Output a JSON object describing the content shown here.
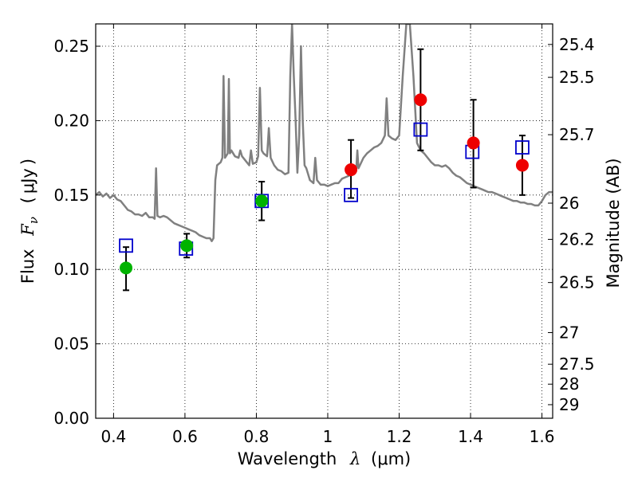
{
  "chart_data": {
    "type": "scatter",
    "title": "",
    "xlabel": {
      "prefix": "Wavelength",
      "symbol": "λ",
      "unit_open": "(",
      "unit": "μm",
      "unit_close": ")"
    },
    "ylabel": {
      "prefix": "Flux",
      "symbol": "F",
      "subscript": "ν",
      "unit_open": "(",
      "unit": "μJy",
      "unit_close": ")"
    },
    "y2label": "Magnitude (AB)",
    "xlim": [
      0.35,
      1.63
    ],
    "ylim": [
      0.0,
      0.265
    ],
    "grid": true,
    "x_ticks": [
      {
        "value": 0.4,
        "label": "0.4"
      },
      {
        "value": 0.6,
        "label": "0.6"
      },
      {
        "value": 0.8,
        "label": "0.8"
      },
      {
        "value": 1.0,
        "label": "1"
      },
      {
        "value": 1.2,
        "label": "1.2"
      },
      {
        "value": 1.4,
        "label": "1.4"
      },
      {
        "value": 1.6,
        "label": "1.6"
      }
    ],
    "y_ticks": [
      {
        "value": 0.0,
        "label": "0.00"
      },
      {
        "value": 0.05,
        "label": "0.05"
      },
      {
        "value": 0.1,
        "label": "0.10"
      },
      {
        "value": 0.15,
        "label": "0.15"
      },
      {
        "value": 0.2,
        "label": "0.20"
      },
      {
        "value": 0.25,
        "label": "0.25"
      }
    ],
    "mag_ticks": [
      "25.4",
      "25.5",
      "25.7",
      "26",
      "26.2",
      "26.5",
      "27",
      "27.5",
      "28",
      "29"
    ],
    "series": [
      {
        "kind": "spectrum",
        "color": "#808080",
        "points": [
          [
            0.35,
            0.15
          ],
          [
            0.36,
            0.152
          ],
          [
            0.37,
            0.149
          ],
          [
            0.38,
            0.151
          ],
          [
            0.39,
            0.148
          ],
          [
            0.4,
            0.15
          ],
          [
            0.41,
            0.147
          ],
          [
            0.42,
            0.146
          ],
          [
            0.43,
            0.143
          ],
          [
            0.44,
            0.14
          ],
          [
            0.45,
            0.139
          ],
          [
            0.46,
            0.137
          ],
          [
            0.47,
            0.137
          ],
          [
            0.48,
            0.136
          ],
          [
            0.49,
            0.138
          ],
          [
            0.5,
            0.135
          ],
          [
            0.51,
            0.135
          ],
          [
            0.515,
            0.134
          ],
          [
            0.519,
            0.168
          ],
          [
            0.523,
            0.136
          ],
          [
            0.53,
            0.135
          ],
          [
            0.54,
            0.136
          ],
          [
            0.55,
            0.135
          ],
          [
            0.56,
            0.133
          ],
          [
            0.57,
            0.131
          ],
          [
            0.58,
            0.13
          ],
          [
            0.59,
            0.129
          ],
          [
            0.6,
            0.128
          ],
          [
            0.61,
            0.127
          ],
          [
            0.62,
            0.126
          ],
          [
            0.63,
            0.125
          ],
          [
            0.64,
            0.123
          ],
          [
            0.65,
            0.122
          ],
          [
            0.66,
            0.121
          ],
          [
            0.67,
            0.121
          ],
          [
            0.675,
            0.119
          ],
          [
            0.68,
            0.121
          ],
          [
            0.685,
            0.16
          ],
          [
            0.69,
            0.17
          ],
          [
            0.7,
            0.172
          ],
          [
            0.705,
            0.175
          ],
          [
            0.708,
            0.23
          ],
          [
            0.712,
            0.175
          ],
          [
            0.72,
            0.178
          ],
          [
            0.723,
            0.228
          ],
          [
            0.726,
            0.178
          ],
          [
            0.73,
            0.18
          ],
          [
            0.74,
            0.176
          ],
          [
            0.75,
            0.175
          ],
          [
            0.755,
            0.18
          ],
          [
            0.76,
            0.176
          ],
          [
            0.77,
            0.173
          ],
          [
            0.78,
            0.17
          ],
          [
            0.785,
            0.18
          ],
          [
            0.79,
            0.171
          ],
          [
            0.8,
            0.172
          ],
          [
            0.805,
            0.176
          ],
          [
            0.81,
            0.222
          ],
          [
            0.815,
            0.18
          ],
          [
            0.82,
            0.178
          ],
          [
            0.83,
            0.176
          ],
          [
            0.835,
            0.195
          ],
          [
            0.84,
            0.175
          ],
          [
            0.85,
            0.17
          ],
          [
            0.86,
            0.167
          ],
          [
            0.87,
            0.166
          ],
          [
            0.88,
            0.164
          ],
          [
            0.89,
            0.165
          ],
          [
            0.895,
            0.23
          ],
          [
            0.9,
            0.265
          ],
          [
            0.905,
            0.23
          ],
          [
            0.91,
            0.2
          ],
          [
            0.915,
            0.165
          ],
          [
            0.92,
            0.19
          ],
          [
            0.925,
            0.25
          ],
          [
            0.93,
            0.2
          ],
          [
            0.935,
            0.17
          ],
          [
            0.94,
            0.168
          ],
          [
            0.95,
            0.16
          ],
          [
            0.96,
            0.158
          ],
          [
            0.965,
            0.175
          ],
          [
            0.97,
            0.16
          ],
          [
            0.98,
            0.157
          ],
          [
            0.99,
            0.157
          ],
          [
            1.0,
            0.156
          ],
          [
            1.01,
            0.157
          ],
          [
            1.02,
            0.158
          ],
          [
            1.03,
            0.158
          ],
          [
            1.04,
            0.161
          ],
          [
            1.05,
            0.162
          ],
          [
            1.06,
            0.163
          ],
          [
            1.07,
            0.164
          ],
          [
            1.08,
            0.168
          ],
          [
            1.083,
            0.18
          ],
          [
            1.086,
            0.168
          ],
          [
            1.09,
            0.17
          ],
          [
            1.1,
            0.175
          ],
          [
            1.11,
            0.178
          ],
          [
            1.12,
            0.18
          ],
          [
            1.13,
            0.182
          ],
          [
            1.14,
            0.183
          ],
          [
            1.15,
            0.185
          ],
          [
            1.16,
            0.19
          ],
          [
            1.165,
            0.215
          ],
          [
            1.17,
            0.19
          ],
          [
            1.18,
            0.188
          ],
          [
            1.19,
            0.187
          ],
          [
            1.2,
            0.19
          ],
          [
            1.21,
            0.23
          ],
          [
            1.22,
            0.265
          ],
          [
            1.23,
            0.265
          ],
          [
            1.24,
            0.23
          ],
          [
            1.25,
            0.185
          ],
          [
            1.26,
            0.18
          ],
          [
            1.27,
            0.178
          ],
          [
            1.28,
            0.175
          ],
          [
            1.29,
            0.172
          ],
          [
            1.3,
            0.17
          ],
          [
            1.31,
            0.17
          ],
          [
            1.32,
            0.169
          ],
          [
            1.33,
            0.17
          ],
          [
            1.34,
            0.168
          ],
          [
            1.35,
            0.165
          ],
          [
            1.36,
            0.163
          ],
          [
            1.37,
            0.162
          ],
          [
            1.38,
            0.16
          ],
          [
            1.39,
            0.158
          ],
          [
            1.4,
            0.157
          ],
          [
            1.41,
            0.156
          ],
          [
            1.42,
            0.155
          ],
          [
            1.43,
            0.154
          ],
          [
            1.44,
            0.153
          ],
          [
            1.45,
            0.152
          ],
          [
            1.46,
            0.152
          ],
          [
            1.47,
            0.151
          ],
          [
            1.48,
            0.15
          ],
          [
            1.49,
            0.149
          ],
          [
            1.5,
            0.148
          ],
          [
            1.51,
            0.147
          ],
          [
            1.52,
            0.146
          ],
          [
            1.53,
            0.146
          ],
          [
            1.54,
            0.145
          ],
          [
            1.55,
            0.145
          ],
          [
            1.56,
            0.144
          ],
          [
            1.57,
            0.144
          ],
          [
            1.58,
            0.143
          ],
          [
            1.59,
            0.143
          ],
          [
            1.6,
            0.146
          ],
          [
            1.61,
            0.15
          ],
          [
            1.62,
            0.152
          ],
          [
            1.63,
            0.152
          ]
        ]
      },
      {
        "kind": "model-squares",
        "color": "#0000cc",
        "points": [
          [
            0.435,
            0.116
          ],
          [
            0.603,
            0.114
          ],
          [
            0.815,
            0.146
          ],
          [
            1.065,
            0.15
          ],
          [
            1.26,
            0.194
          ],
          [
            1.405,
            0.179
          ],
          [
            1.545,
            0.182
          ]
        ]
      },
      {
        "kind": "observed-green",
        "color": "#00b300",
        "points": [
          {
            "x": 0.435,
            "y": 0.101,
            "lo": 0.086,
            "hi": 0.115
          },
          {
            "x": 0.605,
            "y": 0.116,
            "lo": 0.108,
            "hi": 0.124
          },
          {
            "x": 0.815,
            "y": 0.146,
            "lo": 0.133,
            "hi": 0.159
          }
        ]
      },
      {
        "kind": "observed-red",
        "color": "#ee0000",
        "points": [
          {
            "x": 1.065,
            "y": 0.167,
            "lo": 0.148,
            "hi": 0.187
          },
          {
            "x": 1.26,
            "y": 0.214,
            "lo": 0.18,
            "hi": 0.248
          },
          {
            "x": 1.408,
            "y": 0.185,
            "lo": 0.155,
            "hi": 0.214
          },
          {
            "x": 1.545,
            "y": 0.17,
            "lo": 0.15,
            "hi": 0.19
          }
        ]
      }
    ]
  }
}
